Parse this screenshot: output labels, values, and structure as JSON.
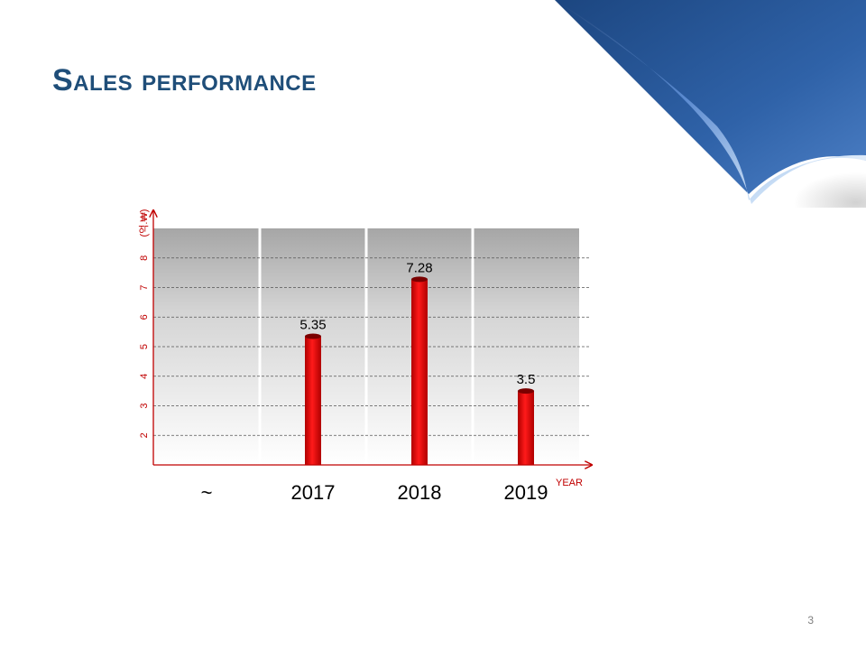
{
  "slide": {
    "title": "Sales performance",
    "page_number": "3"
  },
  "colors": {
    "title": "#1f4e79",
    "bar": "#e00000",
    "axis": "#c00000",
    "curl_dark": "#2d5da0",
    "curl_light": "#a9c6ec"
  },
  "chart_data": {
    "type": "bar",
    "categories": [
      "~",
      "2017",
      "2018",
      "2019"
    ],
    "values": [
      null,
      5.35,
      7.28,
      3.5
    ],
    "value_labels": [
      "",
      "5.35",
      "7.28",
      "3.5"
    ],
    "y_ticks": [
      "2",
      "3",
      "4",
      "5",
      "6",
      "7",
      "8"
    ],
    "ylabel": "(억.₩)",
    "xlabel": "YEAR",
    "ylim": [
      1,
      9
    ],
    "grid": true,
    "grid_style": "dashed"
  }
}
